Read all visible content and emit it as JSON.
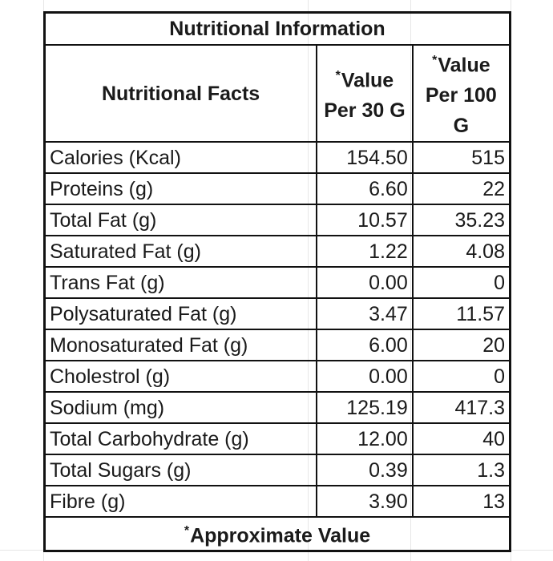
{
  "title": "Nutritional Information",
  "headers": {
    "name": "Nutritional Facts",
    "star": "*",
    "per30_line1": "Value",
    "per30_line2": "Per 30 G",
    "per100_line1": "Value",
    "per100_line2": "Per 100",
    "per100_line3": "G"
  },
  "rows": [
    {
      "name": "Calories (Kcal)",
      "per30": "154.50",
      "per100": "515"
    },
    {
      "name": "Proteins (g)",
      "per30": "6.60",
      "per100": "22"
    },
    {
      "name": "Total Fat (g)",
      "per30": "10.57",
      "per100": "35.23"
    },
    {
      "name": "Saturated Fat (g)",
      "per30": "1.22",
      "per100": "4.08"
    },
    {
      "name": "Trans Fat (g)",
      "per30": "0.00",
      "per100": "0"
    },
    {
      "name": "Polysaturated Fat (g)",
      "per30": "3.47",
      "per100": "11.57"
    },
    {
      "name": "Monosaturated Fat (g)",
      "per30": "6.00",
      "per100": "20"
    },
    {
      "name": "Cholestrol (g)",
      "per30": "0.00",
      "per100": "0"
    },
    {
      "name": "Sodium  (mg)",
      "per30": "125.19",
      "per100": "417.3"
    },
    {
      "name": "Total Carbohydrate (g)",
      "per30": "12.00",
      "per100": "40"
    },
    {
      "name": "Total Sugars (g)",
      "per30": "0.39",
      "per100": "1.3"
    },
    {
      "name": "Fibre (g)",
      "per30": "3.90",
      "per100": "13"
    }
  ],
  "footer": {
    "star": "*",
    "text": "Approximate Value"
  }
}
